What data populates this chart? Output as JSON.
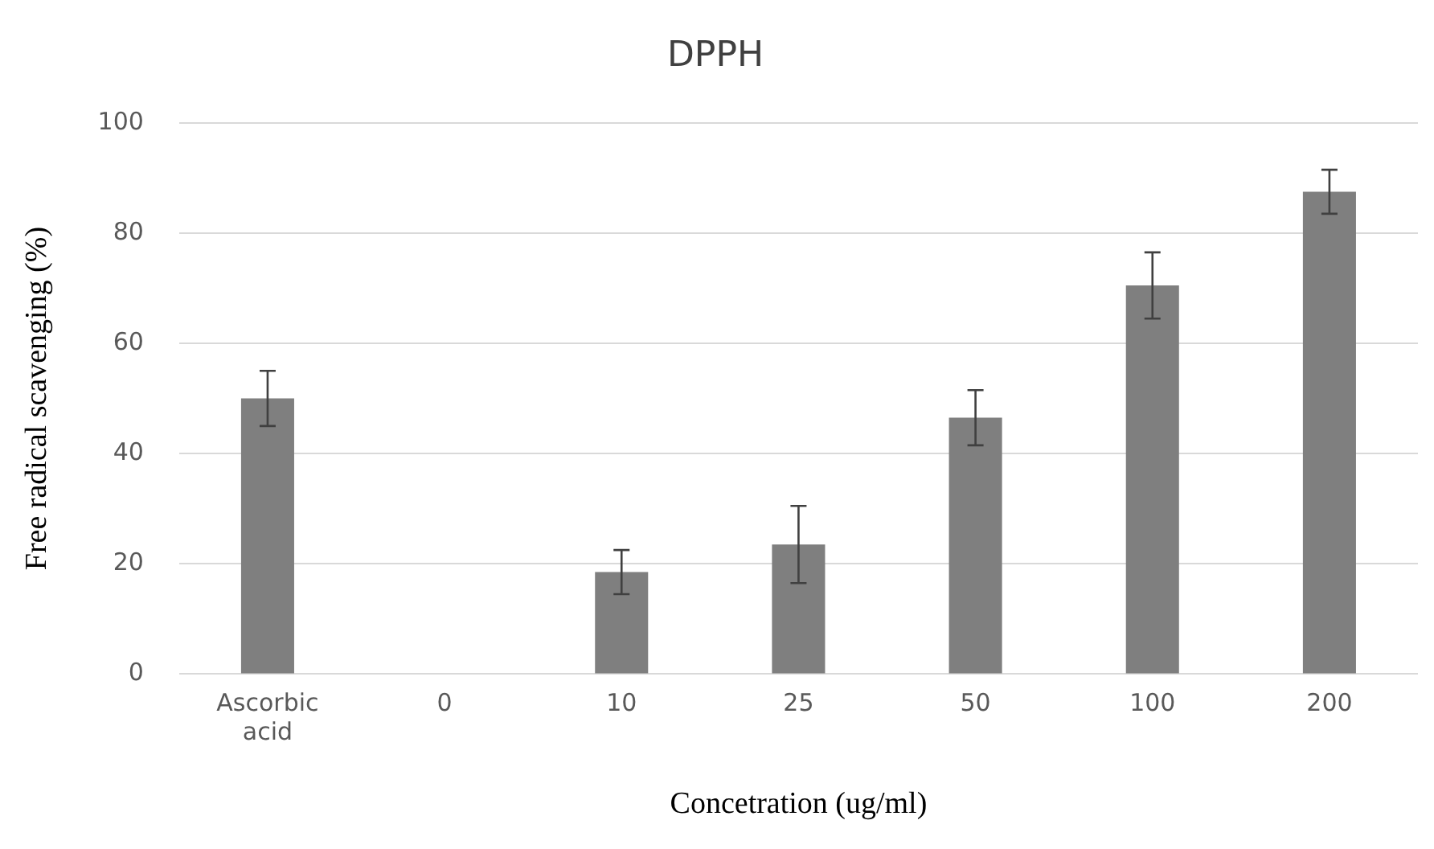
{
  "chart_data": {
    "type": "bar",
    "title": "DPPH",
    "xlabel": "Concetration (ug/ml)",
    "ylabel": "Free radical scavenging (%)",
    "categories": [
      "Ascorbic acid",
      "0",
      "10",
      "25",
      "50",
      "100",
      "200"
    ],
    "values": [
      50,
      0,
      18.5,
      23.5,
      46.5,
      70.5,
      87.5
    ],
    "errors": [
      5,
      null,
      4,
      7,
      5,
      6,
      4
    ],
    "color": "#7f7f7f",
    "ylim": [
      0,
      100
    ],
    "yticks": [
      0,
      20,
      40,
      60,
      80,
      100
    ],
    "grid": "y",
    "legend": false
  }
}
